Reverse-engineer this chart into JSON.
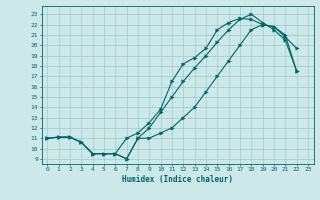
{
  "xlabel": "Humidex (Indice chaleur)",
  "bg_color": "#cce8e8",
  "grid_color": "#99cccc",
  "line_color": "#006666",
  "xlim": [
    -0.5,
    23.5
  ],
  "ylim": [
    8.5,
    23.8
  ],
  "xticks": [
    0,
    1,
    2,
    3,
    4,
    5,
    6,
    7,
    8,
    9,
    10,
    11,
    12,
    13,
    14,
    15,
    16,
    17,
    18,
    19,
    20,
    21,
    22,
    23
  ],
  "yticks": [
    9,
    10,
    11,
    12,
    13,
    14,
    15,
    16,
    17,
    18,
    19,
    20,
    21,
    22,
    23
  ],
  "line1_x": [
    0,
    1,
    2,
    3,
    4,
    5,
    6,
    7,
    8,
    9,
    10,
    11,
    12,
    13,
    14,
    15,
    16,
    17,
    18,
    19,
    20,
    21,
    22
  ],
  "line1_y": [
    11,
    11.1,
    11.1,
    10.6,
    9.5,
    9.5,
    9.5,
    9.0,
    11.0,
    12.0,
    13.5,
    15.0,
    16.5,
    17.8,
    19.0,
    20.3,
    21.5,
    22.5,
    23.0,
    22.2,
    21.5,
    20.5,
    17.5
  ],
  "line2_x": [
    0,
    1,
    2,
    3,
    4,
    5,
    6,
    7,
    8,
    9,
    10,
    11,
    12,
    13,
    14,
    15,
    16,
    17,
    18,
    19,
    20,
    21,
    22
  ],
  "line2_y": [
    11,
    11.1,
    11.1,
    10.6,
    9.5,
    9.5,
    9.5,
    11.0,
    11.5,
    12.5,
    13.8,
    16.5,
    18.2,
    18.8,
    19.7,
    21.5,
    22.2,
    22.6,
    22.5,
    22.0,
    21.8,
    20.8,
    19.7
  ],
  "line3_x": [
    0,
    1,
    2,
    3,
    4,
    5,
    6,
    7,
    8,
    9,
    10,
    11,
    12,
    13,
    14,
    15,
    16,
    17,
    18,
    19,
    20,
    21,
    22
  ],
  "line3_y": [
    11,
    11.1,
    11.1,
    10.6,
    9.5,
    9.5,
    9.5,
    9.0,
    11.0,
    11.0,
    11.5,
    12.0,
    13.0,
    14.0,
    15.5,
    17.0,
    18.5,
    20.0,
    21.5,
    22.0,
    21.8,
    21.0,
    17.5
  ]
}
